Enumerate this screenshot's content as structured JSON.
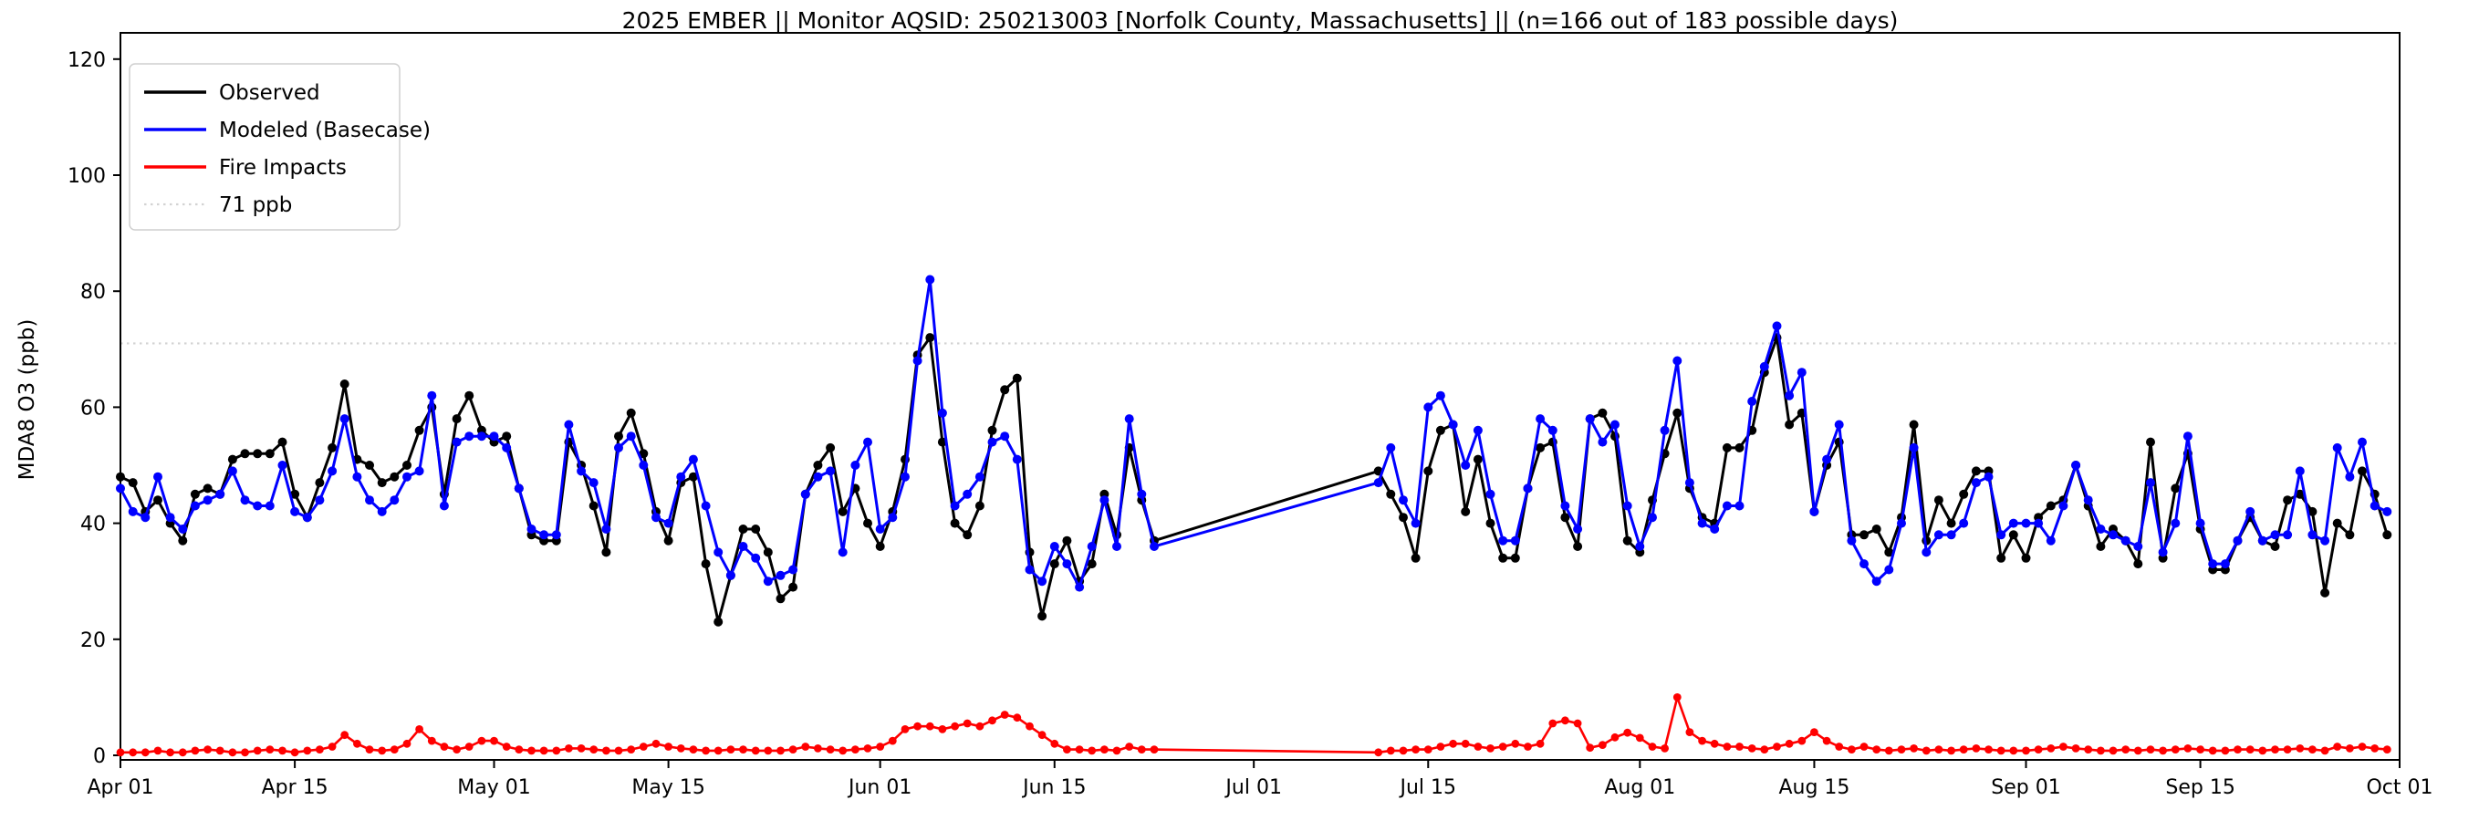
{
  "page": {
    "background": "#ffffff"
  },
  "chart_data": {
    "type": "line",
    "title": "2025 EMBER || Monitor AQSID: 250213003 [Norfolk County, Massachusetts] || (n=166 out of 183 possible days)",
    "xlabel": "",
    "ylabel": "MDA8 O3 (ppb)",
    "ylim": [
      0,
      120
    ],
    "yticks": [
      0,
      20,
      40,
      60,
      80,
      100,
      120
    ],
    "xticks": [
      {
        "label": "Apr 01",
        "day": 0
      },
      {
        "label": "Apr 15",
        "day": 14
      },
      {
        "label": "May 01",
        "day": 30
      },
      {
        "label": "May 15",
        "day": 44
      },
      {
        "label": "Jun 01",
        "day": 61
      },
      {
        "label": "Jun 15",
        "day": 75
      },
      {
        "label": "Jul 01",
        "day": 91
      },
      {
        "label": "Jul 15",
        "day": 105
      },
      {
        "label": "Aug 01",
        "day": 122
      },
      {
        "label": "Aug 15",
        "day": 136
      },
      {
        "label": "Sep 01",
        "day": 153
      },
      {
        "label": "Sep 15",
        "day": 167
      },
      {
        "label": "Oct 01",
        "day": 183
      }
    ],
    "x_span_days": 183,
    "grid": false,
    "legend_position": "upper-left",
    "legend": [
      {
        "label": "Observed",
        "color": "#000000",
        "style": "solid"
      },
      {
        "label": "Modeled (Basecase)",
        "color": "#0000ff",
        "style": "solid"
      },
      {
        "label": "Fire Impacts",
        "color": "#ff0000",
        "style": "solid"
      },
      {
        "label": "71 ppb",
        "color": "#d3d3d3",
        "style": "dotted"
      }
    ],
    "ref_line": {
      "label": "71 ppb",
      "value": 71,
      "color": "#d3d3d3",
      "style": "dotted"
    },
    "days": [
      0,
      1,
      2,
      3,
      4,
      5,
      6,
      7,
      8,
      9,
      10,
      11,
      12,
      13,
      14,
      15,
      16,
      17,
      18,
      19,
      20,
      21,
      22,
      23,
      24,
      25,
      26,
      27,
      28,
      29,
      30,
      31,
      32,
      33,
      34,
      35,
      36,
      37,
      38,
      39,
      40,
      41,
      42,
      43,
      44,
      45,
      46,
      47,
      48,
      49,
      50,
      51,
      52,
      53,
      54,
      55,
      56,
      57,
      58,
      59,
      60,
      61,
      62,
      63,
      64,
      65,
      66,
      67,
      68,
      69,
      70,
      71,
      72,
      73,
      74,
      75,
      76,
      77,
      78,
      79,
      80,
      81,
      82,
      83,
      101,
      102,
      103,
      104,
      105,
      106,
      107,
      108,
      109,
      110,
      111,
      112,
      113,
      114,
      115,
      116,
      117,
      118,
      119,
      120,
      121,
      122,
      123,
      124,
      125,
      126,
      127,
      128,
      129,
      130,
      131,
      132,
      133,
      134,
      135,
      136,
      137,
      138,
      139,
      140,
      141,
      142,
      143,
      144,
      145,
      146,
      147,
      148,
      149,
      150,
      151,
      152,
      153,
      154,
      155,
      156,
      157,
      158,
      159,
      160,
      161,
      162,
      163,
      164,
      165,
      166,
      167,
      168,
      169,
      170,
      171,
      172,
      173,
      174,
      175,
      176,
      177,
      178,
      179,
      180,
      181,
      182
    ],
    "series": [
      {
        "name": "Observed",
        "color": "#000000",
        "values": [
          48,
          47,
          42,
          44,
          40,
          37,
          45,
          46,
          45,
          51,
          52,
          52,
          52,
          54,
          45,
          41,
          47,
          53,
          64,
          51,
          50,
          47,
          48,
          50,
          56,
          60,
          45,
          58,
          62,
          56,
          54,
          55,
          46,
          38,
          37,
          37,
          54,
          50,
          43,
          35,
          55,
          59,
          52,
          42,
          37,
          47,
          48,
          33,
          23,
          31,
          39,
          39,
          35,
          27,
          29,
          45,
          50,
          53,
          42,
          46,
          40,
          36,
          42,
          51,
          69,
          72,
          54,
          40,
          38,
          43,
          56,
          63,
          65,
          35,
          24,
          33,
          37,
          30,
          33,
          45,
          38,
          53,
          44,
          37,
          49,
          45,
          41,
          34,
          49,
          56,
          57,
          42,
          51,
          40,
          34,
          34,
          46,
          53,
          54,
          41,
          36,
          58,
          59,
          55,
          37,
          35,
          44,
          52,
          59,
          46,
          41,
          40,
          53,
          53,
          56,
          66,
          72,
          57,
          59,
          42,
          50,
          54,
          38,
          38,
          39,
          35,
          41,
          57,
          37,
          44,
          40,
          45,
          49,
          49,
          34,
          38,
          34,
          41,
          43,
          44,
          50,
          43,
          36,
          39,
          37,
          33,
          54,
          34,
          46,
          52,
          39,
          32,
          32,
          37,
          41,
          37,
          36,
          44,
          45,
          42,
          28,
          40,
          38,
          49,
          45,
          38
        ]
      },
      {
        "name": "Modeled (Basecase)",
        "color": "#0000ff",
        "values": [
          46,
          42,
          41,
          48,
          41,
          39,
          43,
          44,
          45,
          49,
          44,
          43,
          43,
          50,
          42,
          41,
          44,
          49,
          58,
          48,
          44,
          42,
          44,
          48,
          49,
          62,
          43,
          54,
          55,
          55,
          55,
          53,
          46,
          39,
          38,
          38,
          57,
          49,
          47,
          39,
          53,
          55,
          50,
          41,
          40,
          48,
          51,
          43,
          35,
          31,
          36,
          34,
          30,
          31,
          32,
          45,
          48,
          49,
          35,
          50,
          54,
          39,
          41,
          48,
          68,
          82,
          59,
          43,
          45,
          48,
          54,
          55,
          51,
          32,
          30,
          36,
          33,
          29,
          36,
          44,
          36,
          58,
          45,
          36,
          47,
          53,
          44,
          40,
          60,
          62,
          57,
          50,
          56,
          45,
          37,
          37,
          46,
          58,
          56,
          43,
          39,
          58,
          54,
          57,
          43,
          36,
          41,
          56,
          68,
          47,
          40,
          39,
          43,
          43,
          61,
          67,
          74,
          62,
          66,
          42,
          51,
          57,
          37,
          33,
          30,
          32,
          40,
          53,
          35,
          38,
          38,
          40,
          47,
          48,
          38,
          40,
          40,
          40,
          37,
          43,
          50,
          44,
          39,
          38,
          37,
          36,
          47,
          35,
          40,
          55,
          40,
          33,
          33,
          37,
          42,
          37,
          38,
          38,
          49,
          38,
          37,
          53,
          48,
          54,
          43,
          42
        ]
      },
      {
        "name": "Fire Impacts",
        "color": "#ff0000",
        "values": [
          0.5,
          0.5,
          0.5,
          0.8,
          0.5,
          0.5,
          0.8,
          1,
          0.8,
          0.5,
          0.5,
          0.8,
          1,
          0.8,
          0.5,
          0.8,
          1,
          1.5,
          3.5,
          2,
          1,
          0.8,
          1,
          2,
          4.5,
          2.5,
          1.5,
          1,
          1.5,
          2.5,
          2.5,
          1.5,
          1,
          0.8,
          0.8,
          0.8,
          1.2,
          1.2,
          1,
          0.8,
          0.8,
          1,
          1.5,
          2,
          1.5,
          1.2,
          1,
          0.8,
          0.8,
          1,
          1,
          0.8,
          0.8,
          0.8,
          1,
          1.5,
          1.2,
          1,
          0.8,
          1,
          1.2,
          1.5,
          2.5,
          4.5,
          5,
          5,
          4.5,
          5,
          5.5,
          5,
          6,
          7,
          6.5,
          5,
          3.5,
          2,
          1,
          1,
          0.8,
          1,
          0.8,
          1.5,
          1,
          1,
          0.5,
          0.8,
          0.8,
          1,
          1,
          1.5,
          2,
          2,
          1.5,
          1.2,
          1.5,
          2,
          1.5,
          2,
          5.5,
          6,
          5.5,
          1.3,
          1.8,
          3.1,
          3.9,
          3,
          1.5,
          1.2,
          10,
          4,
          2.5,
          2,
          1.5,
          1.5,
          1.2,
          1,
          1.5,
          2,
          2.5,
          4,
          2.5,
          1.5,
          1,
          1.5,
          1,
          0.8,
          1,
          1.2,
          0.8,
          1,
          0.8,
          1,
          1.2,
          1,
          0.8,
          0.8,
          0.8,
          1,
          1.2,
          1.5,
          1.2,
          1,
          0.8,
          0.8,
          1,
          0.8,
          1,
          0.8,
          1,
          1.2,
          1,
          0.8,
          0.8,
          1,
          1,
          0.8,
          1,
          1,
          1.2,
          1,
          0.8,
          1.5,
          1.2,
          1.5,
          1.2,
          1
        ]
      }
    ]
  }
}
